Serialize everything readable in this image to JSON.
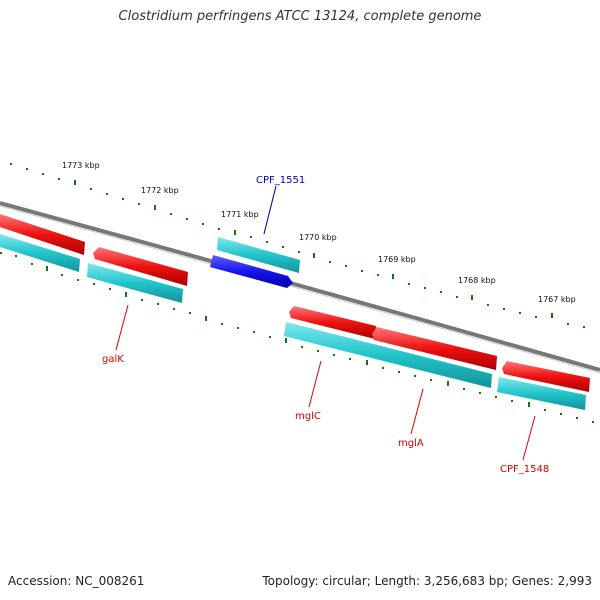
{
  "title": "Clostridium perfringens ATCC 13124, complete genome",
  "accession": "Accession: NC_008261",
  "summary": "Topology: circular; Length: 3,256,683 bp; Genes: 2,993",
  "scale_labels": [
    "1773 kbp",
    "1772 kbp",
    "1771 kbp",
    "1770 kbp",
    "1769 kbp",
    "1768 kbp",
    "1767 kbp"
  ],
  "gene_labels": [
    "CPF_1551",
    "galK",
    "mglC",
    "mglA",
    "CPF_1548"
  ],
  "colors": {
    "backbone": "#7a7a7a",
    "forward_gene": "#ee1111",
    "reverse_cds": "#22c4cc",
    "highlight_gene": "#1515ee",
    "tick": "#117711",
    "label_red": "#dd0000",
    "label_blue": "#0000bb"
  }
}
